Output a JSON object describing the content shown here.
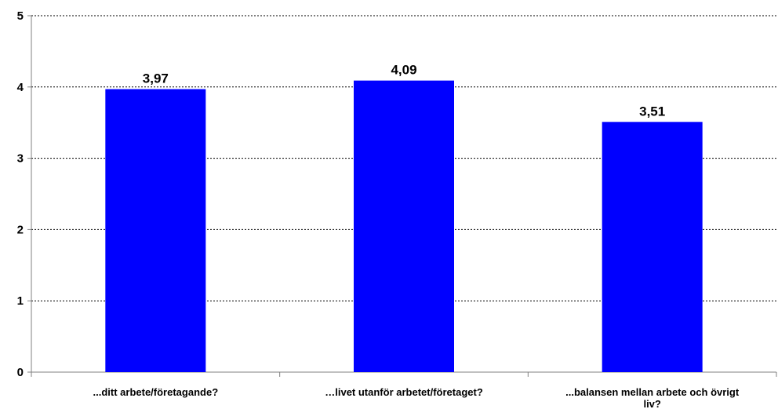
{
  "chart_data": {
    "type": "bar",
    "categories": [
      "...ditt arbete/företagande?",
      "…livet utanför arbetet/företaget?",
      "...balansen mellan arbete och övrigt liv?"
    ],
    "category_lines": [
      [
        "...ditt arbete/företagande?"
      ],
      [
        "…livet utanför arbetet/företaget?"
      ],
      [
        "...balansen mellan arbete och övrigt",
        "liv?"
      ]
    ],
    "values": [
      3.97,
      4.09,
      3.51
    ],
    "data_labels": [
      "3,97",
      "4,09",
      "3,51"
    ],
    "yticks": [
      "0",
      "1",
      "2",
      "3",
      "4",
      "5"
    ],
    "ylim": [
      0,
      5
    ],
    "grid": "dotted-horizontal",
    "legend": "none",
    "bar_color": "#0000FF",
    "axis_color": "#808080",
    "grid_color": "#000000"
  }
}
